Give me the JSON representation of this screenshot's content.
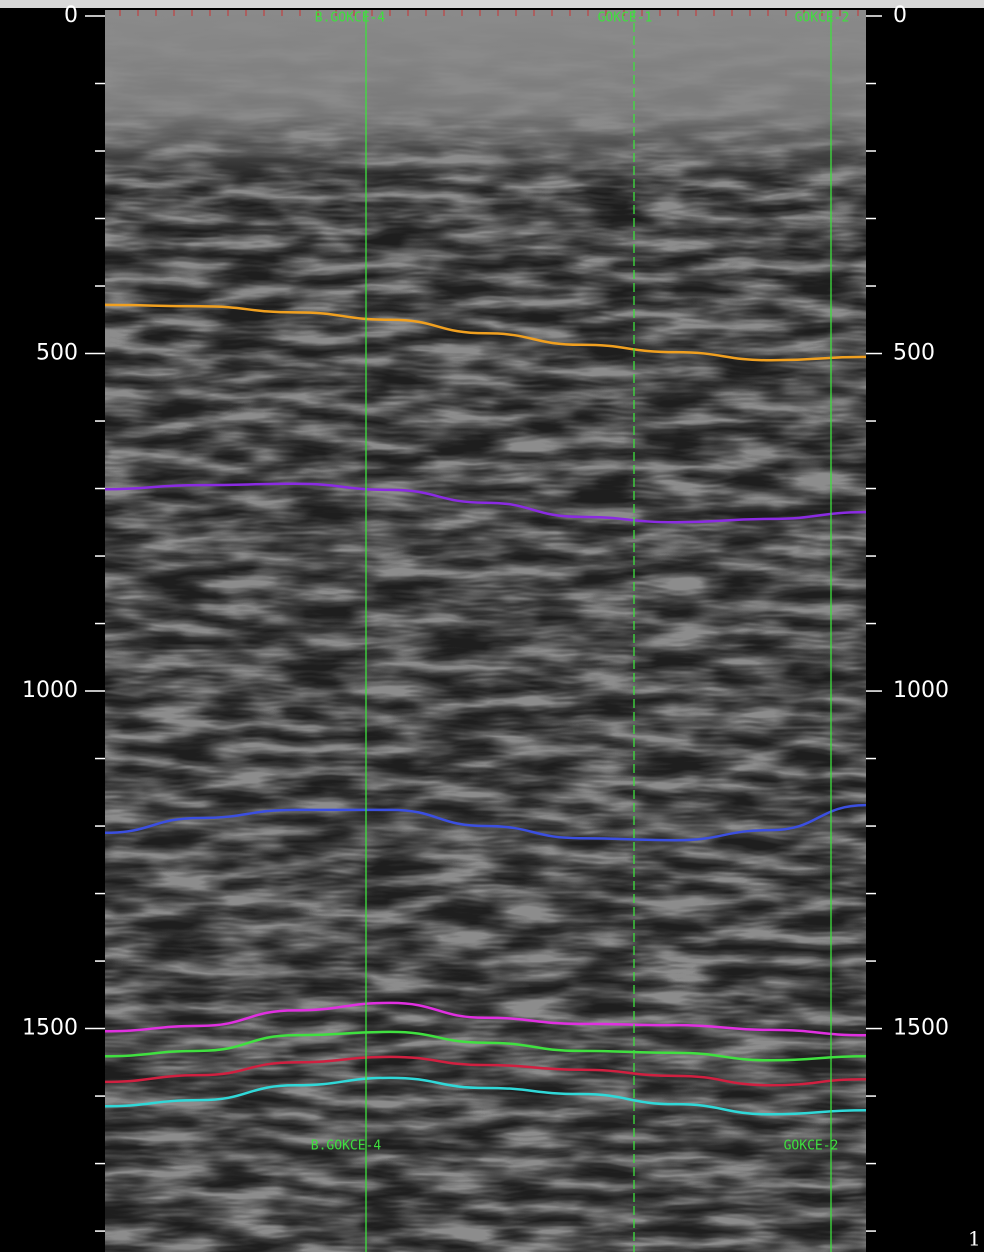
{
  "axis": {
    "range": [
      0,
      1831
    ],
    "ticks": [
      0,
      500,
      1000,
      1500
    ],
    "minor_ticks": [
      100,
      200,
      300,
      400,
      600,
      700,
      800,
      900,
      1100,
      1200,
      1300,
      1400,
      1600,
      1700,
      1800
    ]
  },
  "wells": [
    {
      "top_label": "B.GOKCE-4",
      "bottom_label": "B.GOKCE-4"
    },
    {
      "top_label": "GOKCE-1"
    },
    {
      "top_label": "GOKCE-2",
      "bottom_label": "GOKCE-2"
    }
  ],
  "horizons": [
    {
      "color": "#f0a020",
      "values": [
        428,
        430,
        439,
        450,
        470,
        487,
        498,
        510,
        505
      ]
    },
    {
      "color": "#8a2be2",
      "values": [
        701,
        695,
        693,
        702,
        721,
        742,
        750,
        745,
        735
      ]
    },
    {
      "color": "#3b4fe0",
      "values": [
        1210,
        1188,
        1176,
        1176,
        1200,
        1218,
        1221,
        1206,
        1169
      ]
    },
    {
      "color": "#e030e0",
      "values": [
        1504,
        1496,
        1473,
        1462,
        1484,
        1493,
        1495,
        1502,
        1510
      ]
    },
    {
      "color": "#40e040",
      "values": [
        1541,
        1533,
        1510,
        1505,
        1521,
        1533,
        1536,
        1547,
        1541
      ]
    },
    {
      "color": "#d02040",
      "values": [
        1579,
        1569,
        1550,
        1542,
        1554,
        1561,
        1570,
        1584,
        1575
      ]
    },
    {
      "color": "#30d8d8",
      "values": [
        1615,
        1606,
        1584,
        1573,
        1588,
        1597,
        1612,
        1627,
        1621
      ]
    }
  ],
  "page_number": "1"
}
